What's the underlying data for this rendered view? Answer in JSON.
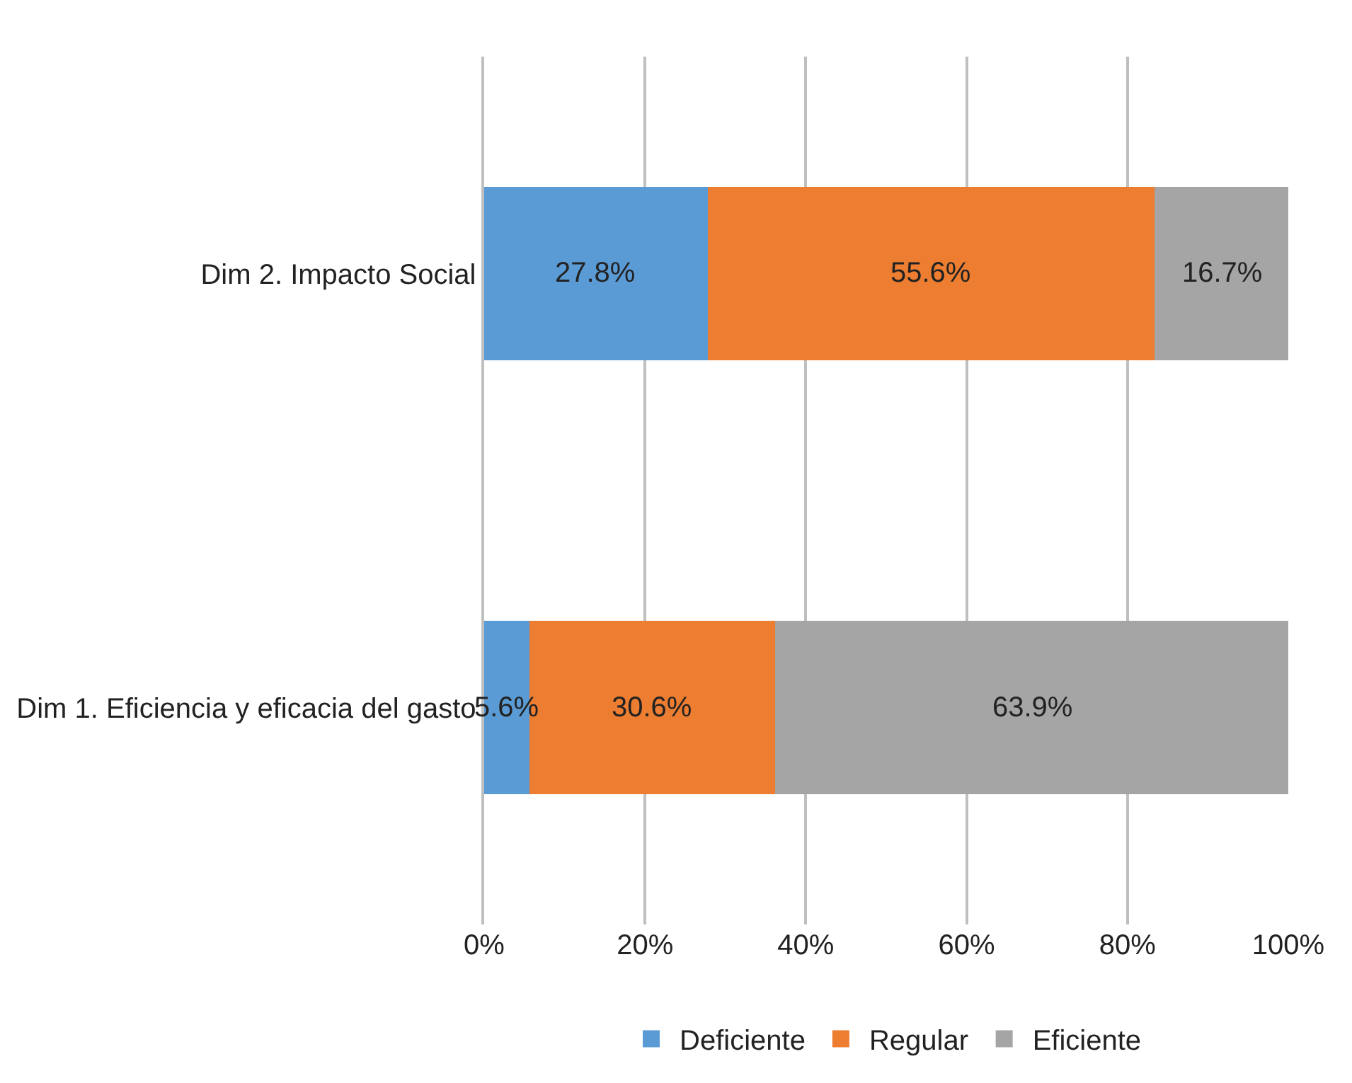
{
  "chart_data": {
    "type": "bar",
    "orientation": "horizontal",
    "stacked": true,
    "categories": [
      "Dim 2. Impacto Social",
      "Dim 1. Eficiencia y eficacia del gasto"
    ],
    "series": [
      {
        "name": "Deficiente",
        "color": "#5b9bd5",
        "values": [
          27.8,
          5.6
        ],
        "value_labels": [
          "27.8%",
          "5.6%"
        ]
      },
      {
        "name": "Regular",
        "color": "#ed7d31",
        "values": [
          55.6,
          30.6
        ],
        "value_labels": [
          "55.6%",
          "30.6%"
        ]
      },
      {
        "name": "Eficiente",
        "color": "#a5a5a5",
        "values": [
          16.7,
          63.9
        ],
        "value_labels": [
          "16.7%",
          "63.9%"
        ]
      }
    ],
    "xlim": [
      0,
      100
    ],
    "xticks": [
      {
        "value": 0,
        "label": "0%"
      },
      {
        "value": 20,
        "label": "20%"
      },
      {
        "value": 40,
        "label": "40%"
      },
      {
        "value": 60,
        "label": "60%"
      },
      {
        "value": 80,
        "label": "80%"
      },
      {
        "value": 100,
        "label": "100%"
      }
    ],
    "grid": "x",
    "legend": "bottom"
  }
}
